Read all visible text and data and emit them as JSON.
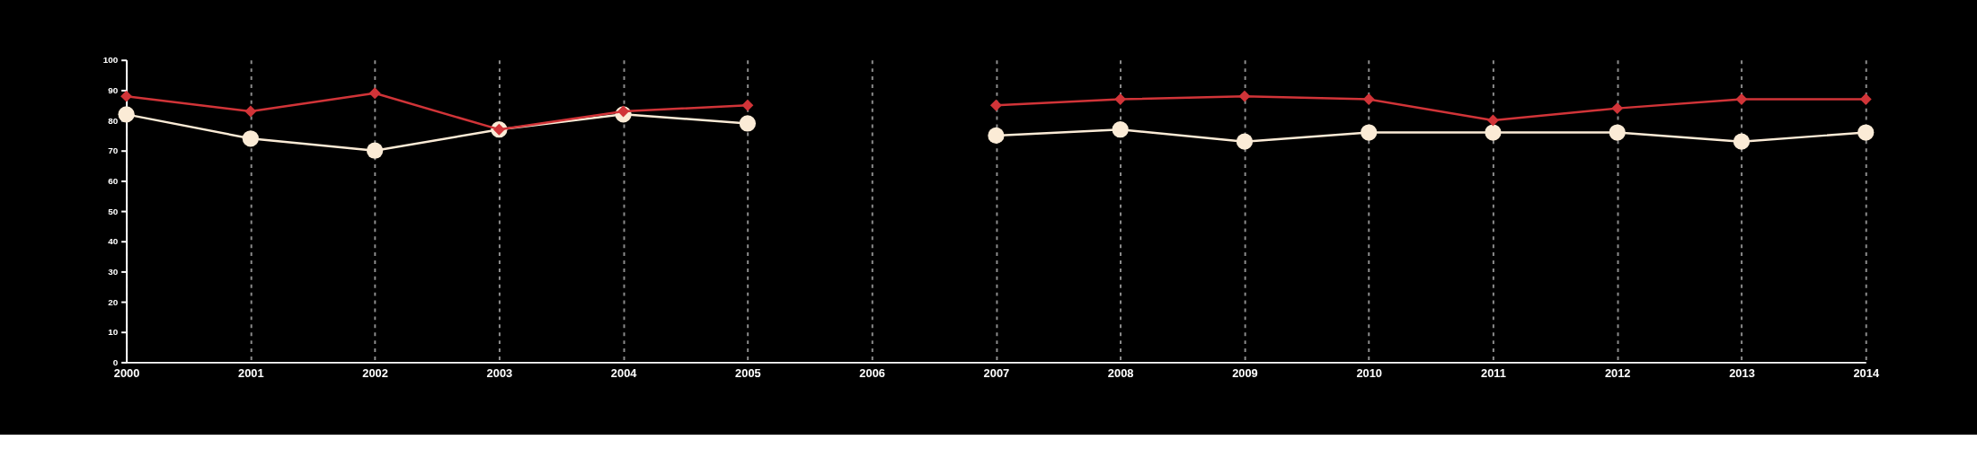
{
  "chart_data": {
    "type": "line",
    "categories": [
      "2000",
      "2001",
      "2002",
      "2003",
      "2004",
      "2005",
      "2006",
      "2007",
      "2008",
      "2009",
      "2010",
      "2011",
      "2012",
      "2013",
      "2014"
    ],
    "series": [
      {
        "color": "#fbebd6",
        "marker": "circle",
        "values": [
          82,
          74,
          70,
          77,
          82,
          79,
          null,
          75,
          77,
          73,
          76,
          76,
          76,
          73,
          76
        ]
      },
      {
        "color": "#d13438",
        "marker": "diamond",
        "values": [
          88,
          83,
          89,
          77,
          83,
          85,
          null,
          85,
          87,
          88,
          87,
          80,
          84,
          87,
          87
        ]
      }
    ],
    "ylim": [
      0,
      100
    ],
    "yticks": [
      0,
      10,
      20,
      30,
      40,
      50,
      60,
      70,
      80,
      90,
      100
    ],
    "grid": "x"
  }
}
